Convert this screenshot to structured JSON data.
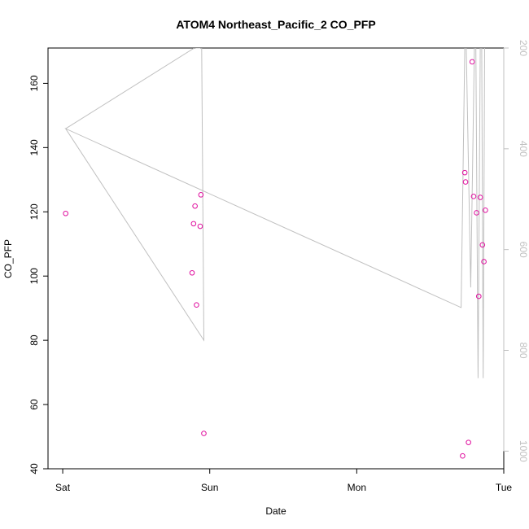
{
  "chart_data": {
    "type": "scatter",
    "title": "ATOM4 Northeast_Pacific_2 CO_PFP",
    "xlabel": "Date",
    "ylabel": "CO_PFP",
    "x_ticks": [
      "Sat",
      "Sun",
      "Mon",
      "Tue"
    ],
    "x_tick_values": [
      0,
      1,
      2,
      3
    ],
    "xlim": [
      -0.1,
      3.0
    ],
    "ylim": [
      40,
      171
    ],
    "y_ticks": [
      40,
      60,
      80,
      100,
      120,
      140,
      160
    ],
    "right_axis": {
      "ticks": [
        200,
        400,
        600,
        800,
        1000
      ],
      "lim": [
        1035,
        200
      ],
      "reversed": true,
      "color": "#c0c0c0"
    },
    "series": [
      {
        "kind": "points",
        "color": "#e0109f",
        "points": [
          {
            "x": 0.02,
            "y": 119.5
          },
          {
            "x": 0.88,
            "y": 101.0
          },
          {
            "x": 0.89,
            "y": 116.3
          },
          {
            "x": 0.9,
            "y": 121.8
          },
          {
            "x": 0.91,
            "y": 91.0
          },
          {
            "x": 0.935,
            "y": 115.5
          },
          {
            "x": 0.94,
            "y": 125.3
          },
          {
            "x": 0.96,
            "y": 51.0
          },
          {
            "x": 2.72,
            "y": 44.0
          },
          {
            "x": 2.735,
            "y": 132.2
          },
          {
            "x": 2.74,
            "y": 129.3
          },
          {
            "x": 2.76,
            "y": 48.2
          },
          {
            "x": 2.785,
            "y": 166.7
          },
          {
            "x": 2.795,
            "y": 124.8
          },
          {
            "x": 2.815,
            "y": 119.7
          },
          {
            "x": 2.83,
            "y": 93.7
          },
          {
            "x": 2.84,
            "y": 124.5
          },
          {
            "x": 2.855,
            "y": 109.7
          },
          {
            "x": 2.865,
            "y": 104.5
          },
          {
            "x": 2.875,
            "y": 120.5
          }
        ]
      },
      {
        "kind": "line",
        "axis": "right",
        "color": "#c0c0c0",
        "points": [
          {
            "x": 0.02,
            "y": 360
          },
          {
            "x": 0.895,
            "y": 200
          },
          {
            "x": 0.9,
            "y": 150
          },
          {
            "x": 0.905,
            "y": 200
          },
          {
            "x": 0.935,
            "y": 200
          },
          {
            "x": 0.94,
            "y": 150
          },
          {
            "x": 0.945,
            "y": 200
          },
          {
            "x": 0.96,
            "y": 780
          },
          {
            "x": 0.02,
            "y": 360
          },
          {
            "x": 2.71,
            "y": 715
          },
          {
            "x": 2.735,
            "y": 200
          },
          {
            "x": 2.74,
            "y": 150
          },
          {
            "x": 2.745,
            "y": 200
          },
          {
            "x": 2.775,
            "y": 675
          },
          {
            "x": 2.8,
            "y": 200
          },
          {
            "x": 2.805,
            "y": 150
          },
          {
            "x": 2.81,
            "y": 200
          },
          {
            "x": 2.825,
            "y": 855
          },
          {
            "x": 2.84,
            "y": 200
          },
          {
            "x": 2.845,
            "y": 150
          },
          {
            "x": 2.85,
            "y": 200
          },
          {
            "x": 2.86,
            "y": 855
          },
          {
            "x": 2.87,
            "y": 200
          }
        ]
      }
    ]
  }
}
